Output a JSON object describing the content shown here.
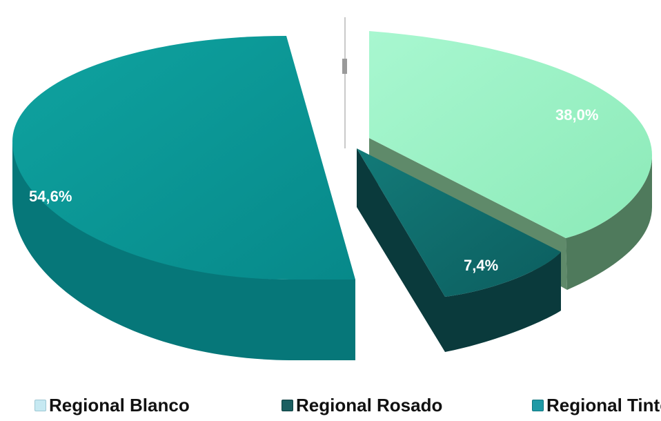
{
  "chart_data": {
    "type": "pie",
    "categories": [
      "Regional Blanco",
      "Regional Rosado",
      "Regional Tinto"
    ],
    "values": [
      38.0,
      7.4,
      54.6
    ],
    "labels": [
      "38,0%",
      "7,4%",
      "54,6%"
    ],
    "colors": [
      "#9ef5c8",
      "#14686a",
      "#0d9696"
    ],
    "legend_position": "bottom",
    "style": "3d-exploded"
  }
}
